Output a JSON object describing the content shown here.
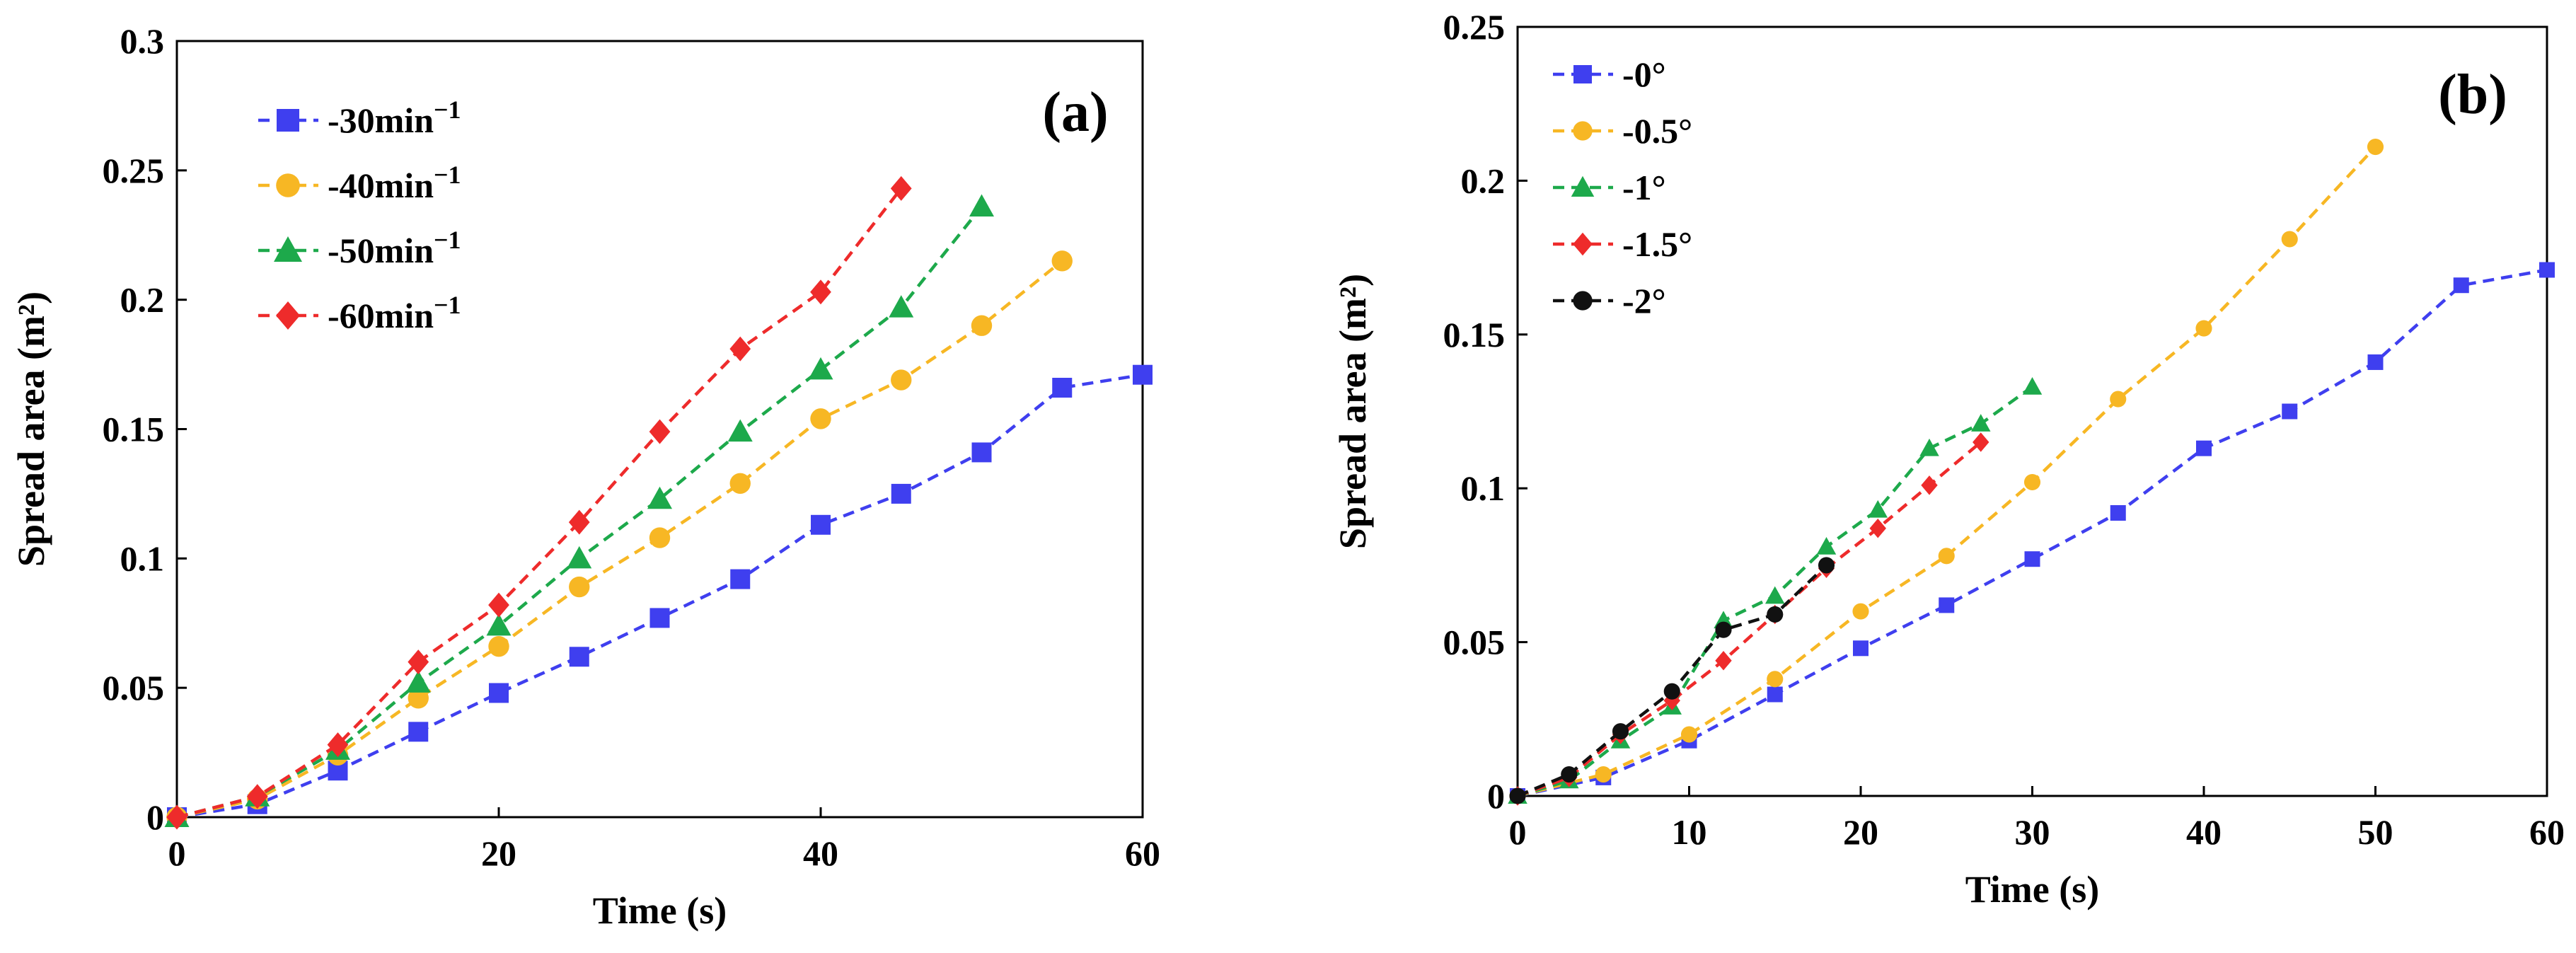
{
  "chart_data": [
    {
      "type": "line",
      "panel_label": "(a)",
      "xlabel": "Time (s)",
      "ylabel": "Spread area (m²)",
      "xlim": [
        0,
        60
      ],
      "ylim": [
        0,
        0.3
      ],
      "xticks": [
        0,
        20,
        40,
        60
      ],
      "xtick_labels": [
        "0",
        "20",
        "40",
        "60"
      ],
      "yticks": [
        0,
        0.05,
        0.1,
        0.15,
        0.2,
        0.25,
        0.3
      ],
      "ytick_labels": [
        "0",
        "0.05",
        "0.1",
        "0.15",
        "0.2",
        "0.25",
        "0.3"
      ],
      "legend_position": "top-left",
      "series": [
        {
          "name": "30min",
          "superscript": "−1",
          "color": "#3F3FEF",
          "marker": "square",
          "x": [
            0,
            5,
            10,
            15,
            20,
            25,
            30,
            35,
            40,
            45,
            50,
            55,
            60
          ],
          "y": [
            0,
            0.005,
            0.018,
            0.033,
            0.048,
            0.062,
            0.077,
            0.092,
            0.113,
            0.125,
            0.141,
            0.166,
            0.171
          ]
        },
        {
          "name": "40min",
          "superscript": "−1",
          "color": "#F7B724",
          "marker": "circle",
          "x": [
            0,
            5,
            10,
            15,
            20,
            25,
            30,
            35,
            40,
            45,
            50,
            55
          ],
          "y": [
            0,
            0.007,
            0.024,
            0.046,
            0.066,
            0.089,
            0.108,
            0.129,
            0.154,
            0.169,
            0.19,
            0.215
          ]
        },
        {
          "name": "50min",
          "superscript": "−1",
          "color": "#1DA94B",
          "marker": "triangle",
          "x": [
            0,
            5,
            10,
            15,
            20,
            25,
            30,
            35,
            40,
            45,
            50
          ],
          "y": [
            0,
            0.008,
            0.026,
            0.052,
            0.074,
            0.1,
            0.123,
            0.149,
            0.173,
            0.197,
            0.236
          ]
        },
        {
          "name": "60min",
          "superscript": "−1",
          "color": "#EE2B2B",
          "marker": "diamond",
          "x": [
            0,
            5,
            10,
            15,
            20,
            25,
            30,
            35,
            40,
            45
          ],
          "y": [
            0,
            0.008,
            0.028,
            0.06,
            0.082,
            0.114,
            0.149,
            0.181,
            0.203,
            0.243
          ]
        }
      ]
    },
    {
      "type": "line",
      "panel_label": "(b)",
      "xlabel": "Time (s)",
      "ylabel": "Spread area (m²)",
      "xlim": [
        0,
        60
      ],
      "ylim": [
        0,
        0.25
      ],
      "xticks": [
        0,
        10,
        20,
        30,
        40,
        50,
        60
      ],
      "xtick_labels": [
        "0",
        "10",
        "20",
        "30",
        "40",
        "50",
        "60"
      ],
      "yticks": [
        0,
        0.05,
        0.1,
        0.15,
        0.2,
        0.25
      ],
      "ytick_labels": [
        "0",
        "0.05",
        "0.1",
        "0.15",
        "0.2",
        "0.25"
      ],
      "legend_position": "top-left",
      "series": [
        {
          "name": "0°",
          "color": "#3F3FEF",
          "marker": "square",
          "x": [
            0,
            5,
            10,
            15,
            20,
            25,
            30,
            35,
            40,
            45,
            50,
            55,
            60
          ],
          "y": [
            0,
            0.006,
            0.018,
            0.033,
            0.048,
            0.062,
            0.077,
            0.092,
            0.113,
            0.125,
            0.141,
            0.166,
            0.171
          ]
        },
        {
          "name": "0.5°",
          "color": "#F7B724",
          "marker": "circle",
          "x": [
            0,
            5,
            10,
            15,
            20,
            25,
            30,
            35,
            40,
            45,
            50
          ],
          "y": [
            0,
            0.007,
            0.02,
            0.038,
            0.06,
            0.078,
            0.102,
            0.129,
            0.152,
            0.181,
            0.211
          ]
        },
        {
          "name": "1°",
          "color": "#1DA94B",
          "marker": "triangle",
          "x": [
            0,
            3,
            6,
            9,
            12,
            15,
            18,
            21,
            24,
            27,
            30
          ],
          "y": [
            0,
            0.005,
            0.018,
            0.029,
            0.057,
            0.065,
            0.081,
            0.093,
            0.113,
            0.121,
            0.133
          ]
        },
        {
          "name": "1.5°",
          "color": "#EE2B2B",
          "marker": "diamond",
          "x": [
            0,
            3,
            6,
            9,
            12,
            15,
            18,
            21,
            24,
            27
          ],
          "y": [
            0,
            0.006,
            0.02,
            0.031,
            0.044,
            0.059,
            0.074,
            0.087,
            0.101,
            0.115
          ]
        },
        {
          "name": "2°",
          "color": "#111111",
          "marker": "circle",
          "x": [
            0,
            3,
            6,
            9,
            12,
            15,
            18
          ],
          "y": [
            0,
            0.007,
            0.021,
            0.034,
            0.054,
            0.059,
            0.075
          ]
        }
      ]
    }
  ]
}
